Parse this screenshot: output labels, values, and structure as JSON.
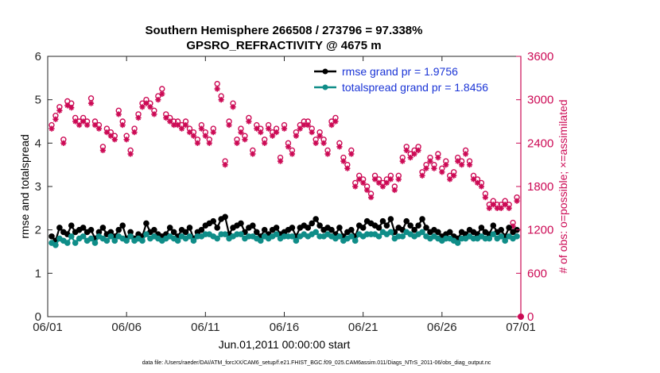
{
  "chart_data": {
    "type": "line",
    "title_line1": "Southern Hemisphere 266508 / 273796 = 97.338%",
    "title_line2": "GPSRO_REFRACTIVITY @ 4675 m",
    "xlabel": "Jun.01,2011 00:00:00 start",
    "ylabel_left": "rmse and totalspread",
    "ylabel_right": "# of obs: o=possible; ×=assimilated",
    "footer": "data file: /Users/raeder/DAI/ATM_forcXX/CAM6_setup/f.e21.FHIST_BGC.f09_025.CAM6assim.011/Diags_NTrS_2011-06/obs_diag_output.nc",
    "xlim": [
      0,
      30
    ],
    "ylim_left": [
      0,
      6
    ],
    "ylim_right": [
      0,
      3600
    ],
    "x_ticks": [
      0,
      5,
      10,
      15,
      20,
      25,
      30
    ],
    "x_tick_labels": [
      "06/01",
      "06/06",
      "06/11",
      "06/16",
      "06/21",
      "06/26",
      "07/01"
    ],
    "y_left_ticks": [
      0,
      1,
      2,
      3,
      4,
      5,
      6
    ],
    "y_left_tick_labels": [
      "0",
      "1",
      "2",
      "3",
      "4",
      "5",
      "6"
    ],
    "y_right_ticks": [
      0,
      600,
      1200,
      1800,
      2400,
      3000,
      3600
    ],
    "y_right_tick_labels": [
      "0",
      "600",
      "1200",
      "1800",
      "2400",
      "3000",
      "3600"
    ],
    "legend_placement": "top-right",
    "colors": {
      "rmse": "#000000",
      "spread": "#0f8d88",
      "obs": "#cc0a55"
    },
    "x": [
      0.25,
      0.5,
      0.75,
      1,
      1.25,
      1.5,
      1.75,
      2,
      2.25,
      2.5,
      2.75,
      3,
      3.25,
      3.5,
      3.75,
      4,
      4.25,
      4.5,
      4.75,
      5,
      5.25,
      5.5,
      5.75,
      6,
      6.25,
      6.5,
      6.75,
      7,
      7.25,
      7.5,
      7.75,
      8,
      8.25,
      8.5,
      8.75,
      9,
      9.25,
      9.5,
      9.75,
      10,
      10.25,
      10.5,
      10.75,
      11,
      11.25,
      11.5,
      11.75,
      12,
      12.25,
      12.5,
      12.75,
      13,
      13.25,
      13.5,
      13.75,
      14,
      14.25,
      14.5,
      14.75,
      15,
      15.25,
      15.5,
      15.75,
      16,
      16.25,
      16.5,
      16.75,
      17,
      17.25,
      17.5,
      17.75,
      18,
      18.25,
      18.5,
      18.75,
      19,
      19.25,
      19.5,
      19.75,
      20,
      20.25,
      20.5,
      20.75,
      21,
      21.25,
      21.5,
      21.75,
      22,
      22.25,
      22.5,
      22.75,
      23,
      23.25,
      23.5,
      23.75,
      24,
      24.25,
      24.5,
      24.75,
      25,
      25.25,
      25.5,
      25.75,
      26,
      26.25,
      26.5,
      26.75,
      27,
      27.25,
      27.5,
      27.75,
      28,
      28.25,
      28.5,
      28.75,
      29,
      29.25,
      29.5,
      29.75
    ],
    "series": [
      {
        "name": "rmse grand pr = 1.9756",
        "values": [
          1.85,
          1.75,
          2.05,
          1.95,
          1.9,
          2.1,
          1.95,
          2.0,
          2.05,
          1.95,
          2.0,
          1.8,
          1.95,
          2.05,
          1.9,
          1.95,
          1.85,
          2.0,
          2.1,
          1.8,
          1.95,
          1.8,
          1.9,
          1.85,
          2.15,
          1.95,
          2.0,
          1.9,
          1.85,
          1.9,
          2.05,
          1.95,
          1.85,
          2.0,
          1.95,
          2.05,
          1.8,
          1.95,
          2.0,
          2.1,
          2.15,
          2.2,
          2.05,
          2.25,
          2.3,
          1.9,
          2.05,
          2.1,
          2.15,
          1.95,
          2.05,
          2.1,
          1.95,
          1.85,
          2.0,
          1.9,
          2.0,
          2.05,
          1.9,
          1.95,
          2.0,
          2.05,
          1.85,
          2.05,
          2.1,
          2.05,
          2.15,
          2.25,
          2.1,
          2.0,
          2.05,
          2.0,
          1.9,
          2.05,
          1.85,
          1.95,
          2.0,
          1.85,
          2.1,
          2.05,
          2.2,
          2.15,
          2.1,
          2.05,
          2.2,
          2.1,
          2.25,
          1.95,
          2.05,
          2.0,
          2.2,
          2.1,
          2.0,
          2.1,
          2.25,
          2.05,
          1.95,
          2.0,
          1.95,
          1.85,
          1.9,
          1.95,
          1.85,
          1.8,
          1.95,
          1.9,
          2.0,
          1.95,
          1.9,
          2.05,
          1.95,
          1.9,
          2.1,
          1.95,
          2.0,
          1.85,
          2.05,
          1.95,
          2.0
        ]
      },
      {
        "name": "totalspread grand pr = 1.8456",
        "values": [
          1.7,
          1.65,
          1.8,
          1.75,
          1.7,
          1.85,
          1.7,
          1.8,
          1.85,
          1.75,
          1.8,
          1.7,
          1.85,
          1.8,
          1.75,
          1.85,
          1.75,
          1.85,
          1.8,
          1.75,
          1.85,
          1.75,
          1.8,
          1.75,
          1.9,
          1.8,
          1.85,
          1.8,
          1.75,
          1.8,
          1.85,
          1.8,
          1.75,
          1.85,
          1.8,
          1.85,
          1.75,
          1.85,
          1.85,
          1.9,
          1.9,
          1.85,
          1.8,
          1.9,
          1.9,
          1.8,
          1.85,
          1.9,
          1.9,
          1.8,
          1.85,
          1.85,
          1.8,
          1.75,
          1.85,
          1.8,
          1.85,
          1.9,
          1.8,
          1.85,
          1.85,
          1.85,
          1.75,
          1.85,
          1.9,
          1.85,
          1.9,
          1.95,
          1.85,
          1.85,
          1.9,
          1.85,
          1.8,
          1.85,
          1.75,
          1.8,
          1.85,
          1.75,
          1.9,
          1.85,
          1.9,
          1.9,
          1.9,
          1.85,
          1.95,
          1.9,
          1.95,
          1.8,
          1.85,
          1.85,
          1.95,
          1.9,
          1.85,
          1.9,
          1.95,
          1.85,
          1.8,
          1.85,
          1.8,
          1.75,
          1.8,
          1.8,
          1.75,
          1.7,
          1.8,
          1.8,
          1.85,
          1.8,
          1.8,
          1.85,
          1.8,
          1.8,
          1.9,
          1.8,
          1.85,
          1.75,
          1.85,
          1.8,
          1.85
        ]
      },
      {
        "name": "obs possible",
        "values": [
          2650,
          2780,
          2900,
          2450,
          2980,
          2950,
          2750,
          2700,
          2750,
          2700,
          3020,
          2700,
          2650,
          2350,
          2600,
          2550,
          2500,
          2850,
          2700,
          2500,
          2300,
          2600,
          2800,
          2950,
          3000,
          2950,
          2850,
          3050,
          3150,
          2800,
          2750,
          2700,
          2700,
          2650,
          2700,
          2600,
          2550,
          2450,
          2650,
          2550,
          2450,
          2600,
          3220,
          3050,
          2150,
          2700,
          2950,
          2450,
          2600,
          2500,
          2750,
          2300,
          2650,
          2600,
          2450,
          2650,
          2550,
          2600,
          2200,
          2650,
          2400,
          2300,
          2550,
          2650,
          2700,
          2700,
          2600,
          2450,
          2550,
          2450,
          2300,
          2700,
          2750,
          2400,
          2200,
          2100,
          2300,
          1850,
          1950,
          1900,
          1800,
          1700,
          1950,
          1900,
          1850,
          1900,
          1950,
          1800,
          1950,
          2200,
          2350,
          2250,
          2300,
          2350,
          2000,
          2100,
          2200,
          2100,
          2250,
          2050,
          2150,
          1950,
          2000,
          2200,
          2150,
          2300,
          2150,
          1950,
          1900,
          1850,
          1700,
          1550,
          1600,
          1550,
          1550,
          1600,
          1550,
          1300,
          1650
        ]
      },
      {
        "name": "obs assimilated",
        "values": [
          2600,
          2730,
          2850,
          2400,
          2920,
          2890,
          2700,
          2650,
          2700,
          2650,
          2950,
          2650,
          2600,
          2300,
          2550,
          2500,
          2450,
          2800,
          2650,
          2450,
          2250,
          2550,
          2750,
          2900,
          2950,
          2900,
          2800,
          3000,
          3080,
          2750,
          2700,
          2650,
          2650,
          2600,
          2650,
          2550,
          2500,
          2400,
          2600,
          2500,
          2400,
          2550,
          3150,
          3000,
          2100,
          2650,
          2900,
          2400,
          2550,
          2450,
          2700,
          2250,
          2600,
          2550,
          2400,
          2600,
          2500,
          2550,
          2150,
          2600,
          2350,
          2250,
          2500,
          2600,
          2650,
          2650,
          2550,
          2400,
          2500,
          2400,
          2250,
          2650,
          2700,
          2350,
          2150,
          2050,
          2250,
          1800,
          1900,
          1850,
          1750,
          1650,
          1900,
          1850,
          1800,
          1850,
          1900,
          1750,
          1900,
          2150,
          2300,
          2200,
          2250,
          2300,
          1950,
          2050,
          2150,
          2050,
          2200,
          2000,
          2100,
          1900,
          1950,
          2150,
          2100,
          2250,
          2100,
          1900,
          1850,
          1800,
          1650,
          1500,
          1550,
          1500,
          1500,
          1550,
          1500,
          1250,
          1600
        ]
      }
    ]
  }
}
